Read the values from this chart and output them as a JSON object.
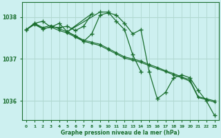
{
  "title": "Graphe pression niveau de la mer (hPa)",
  "bg_color": "#cdf0f0",
  "grid_color": "#b0d8d0",
  "line_color": "#1a6e2e",
  "xlim": [
    -0.5,
    23.5
  ],
  "ylim": [
    1035.55,
    1038.35
  ],
  "yticks": [
    1036,
    1037,
    1038
  ],
  "xticks": [
    0,
    1,
    2,
    3,
    4,
    5,
    6,
    7,
    8,
    9,
    10,
    11,
    12,
    13,
    14,
    15,
    16,
    17,
    18,
    19,
    20,
    21,
    22,
    23
  ],
  "series1_x": [
    0,
    1,
    2,
    3,
    4,
    5,
    6,
    7,
    8,
    9,
    10,
    11,
    12,
    13,
    14,
    15,
    16,
    17,
    18,
    19,
    20,
    21,
    22,
    23
  ],
  "series1_y": [
    1037.7,
    1037.85,
    1037.75,
    1037.8,
    1037.72,
    1037.65,
    1037.55,
    1037.45,
    1037.4,
    1037.35,
    1037.25,
    1037.15,
    1037.05,
    1037.0,
    1036.95,
    1036.87,
    1036.8,
    1036.72,
    1036.65,
    1036.57,
    1036.5,
    1036.1,
    1036.05,
    1036.0
  ],
  "series2_x": [
    0,
    1,
    2,
    3,
    4,
    5,
    6,
    7,
    8,
    9,
    10,
    11,
    12,
    13,
    14,
    15,
    16,
    17,
    18,
    19,
    20,
    21,
    22,
    23
  ],
  "series2_y": [
    1037.7,
    1037.82,
    1037.72,
    1037.76,
    1037.68,
    1037.62,
    1037.52,
    1037.42,
    1037.37,
    1037.32,
    1037.22,
    1037.12,
    1037.02,
    1036.97,
    1036.92,
    1036.84,
    1036.77,
    1036.7,
    1036.62,
    1036.55,
    1036.47,
    1036.08,
    1036.03,
    1035.97
  ],
  "series3_x": [
    0,
    1,
    2,
    3,
    4,
    5,
    6,
    7,
    8,
    9,
    10,
    11,
    12,
    13,
    14,
    15,
    16,
    17,
    18,
    19,
    20,
    21,
    22,
    23
  ],
  "series3_y": [
    1037.7,
    1037.85,
    1037.9,
    1037.76,
    1037.85,
    1037.65,
    1037.55,
    1037.42,
    1037.6,
    1038.05,
    1038.1,
    1038.05,
    1037.85,
    1037.6,
    1037.7,
    1036.7,
    1036.05,
    1036.2,
    1036.55,
    1036.62,
    1036.55,
    1036.25,
    1036.0,
    1035.65
  ],
  "series4_x": [
    0,
    1,
    2,
    3,
    4,
    5,
    6,
    7,
    8,
    5,
    9,
    10,
    11,
    12,
    13,
    14
  ],
  "series4_y": [
    1037.7,
    1037.85,
    1037.72,
    1037.76,
    1037.75,
    1037.78,
    1037.68,
    1037.78,
    1038.08,
    1037.65,
    1038.12,
    1038.12,
    1037.9,
    1037.7,
    1037.1,
    1036.7
  ]
}
